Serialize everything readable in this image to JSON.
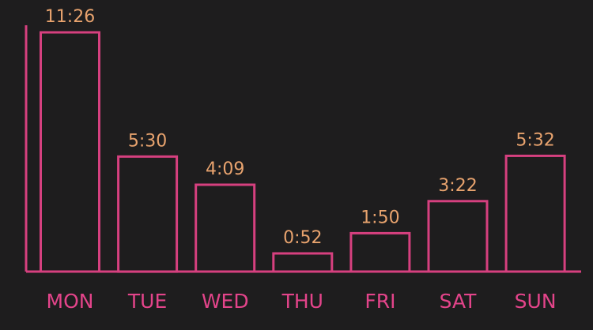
{
  "colors": {
    "background": "#1e1d1e",
    "bar_stroke": "#d6407f",
    "axis": "#d6407f",
    "value_label": "#e8a36e",
    "category_label": "#e3448a"
  },
  "chart_data": {
    "type": "bar",
    "title": "",
    "xlabel": "",
    "ylabel": "",
    "categories": [
      "MON",
      "TUE",
      "WED",
      "THU",
      "FRI",
      "SAT",
      "SUN"
    ],
    "values": [
      686,
      330,
      249,
      52,
      110,
      202,
      332
    ],
    "value_labels": [
      "11:26",
      "5:30",
      "4:09",
      "0:52",
      "1:50",
      "3:22",
      "5:32"
    ],
    "ylim": [
      0,
      720
    ],
    "grid": false,
    "legend": "none"
  }
}
